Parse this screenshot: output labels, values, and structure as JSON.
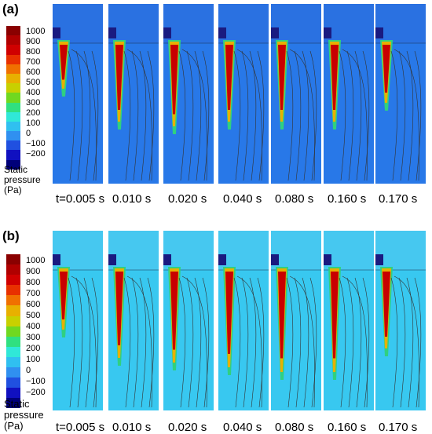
{
  "panels": [
    {
      "label": "(a)",
      "times": [
        "t=0.005 s",
        "0.010 s",
        "0.020 s",
        "0.040 s",
        "0.080 s",
        "0.160 s",
        "0.170 s"
      ]
    },
    {
      "label": "(b)",
      "times": [
        "t=0.005 s",
        "0.010 s",
        "0.020 s",
        "0.040 s",
        "0.080 s",
        "0.160 s",
        "0.170 s"
      ]
    }
  ],
  "legend": {
    "title": [
      "Static",
      "pressure",
      "(Pa)"
    ],
    "ticks": [
      "1000",
      "900",
      "800",
      "700",
      "600",
      "500",
      "400",
      "300",
      "200",
      "100",
      "0",
      "−100",
      "−200"
    ],
    "colors": [
      "#8a0000",
      "#b00000",
      "#d00000",
      "#e83000",
      "#f07000",
      "#e8b000",
      "#c8d000",
      "#70d820",
      "#30e080",
      "#30e8d8",
      "#30c0f0",
      "#3090f0",
      "#2050e0",
      "#1010c0",
      "#00007a"
    ]
  }
}
